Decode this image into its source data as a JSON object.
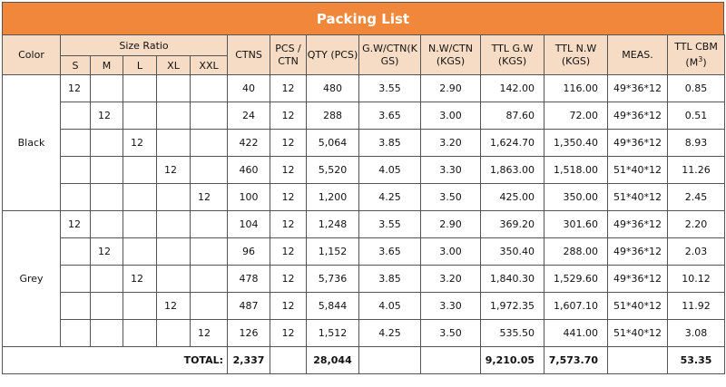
{
  "title": "Packing List",
  "headers": {
    "color": "Color",
    "size_ratio": "Size Ratio",
    "sizes": [
      "S",
      "M",
      "L",
      "XL",
      "XXL"
    ],
    "ctns": "CTNS",
    "pcs_ctn": "PCS / CTN",
    "qty": "QTY (PCS)",
    "gw_ctn": "G.W/CTN(KGS)",
    "nw_ctn": "N.W/CTN (KGS)",
    "ttl_gw": "TTL G.W (KGS)",
    "ttl_nw": "TTL N.W (KGS)",
    "meas": "MEAS.",
    "ttl_cbm": "TTL CBM",
    "ttl_cbm_unit": "(M",
    "ttl_cbm_sup": "3",
    "ttl_cbm_close": ")"
  },
  "groups": [
    {
      "color": "Black",
      "rows": [
        {
          "s": "12",
          "m": "",
          "l": "",
          "xl": "",
          "xxl": "",
          "ctns": "40",
          "pcs": "12",
          "qty": "480",
          "gw": "3.55",
          "nw": "2.90",
          "ttl_gw": "142.00",
          "ttl_nw": "116.00",
          "meas": "49*36*12",
          "cbm": "0.85"
        },
        {
          "s": "",
          "m": "12",
          "l": "",
          "xl": "",
          "xxl": "",
          "ctns": "24",
          "pcs": "12",
          "qty": "288",
          "gw": "3.65",
          "nw": "3.00",
          "ttl_gw": "87.60",
          "ttl_nw": "72.00",
          "meas": "49*36*12",
          "cbm": "0.51"
        },
        {
          "s": "",
          "m": "",
          "l": "12",
          "xl": "",
          "xxl": "",
          "ctns": "422",
          "pcs": "12",
          "qty": "5,064",
          "gw": "3.85",
          "nw": "3.20",
          "ttl_gw": "1,624.70",
          "ttl_nw": "1,350.40",
          "meas": "49*36*12",
          "cbm": "8.93"
        },
        {
          "s": "",
          "m": "",
          "l": "",
          "xl": "12",
          "xxl": "",
          "ctns": "460",
          "pcs": "12",
          "qty": "5,520",
          "gw": "4.05",
          "nw": "3.30",
          "ttl_gw": "1,863.00",
          "ttl_nw": "1,518.00",
          "meas": "51*40*12",
          "cbm": "11.26"
        },
        {
          "s": "",
          "m": "",
          "l": "",
          "xl": "",
          "xxl": "12",
          "ctns": "100",
          "pcs": "12",
          "qty": "1,200",
          "gw": "4.25",
          "nw": "3.50",
          "ttl_gw": "425.00",
          "ttl_nw": "350.00",
          "meas": "51*40*12",
          "cbm": "2.45"
        }
      ]
    },
    {
      "color": "Grey",
      "rows": [
        {
          "s": "12",
          "m": "",
          "l": "",
          "xl": "",
          "xxl": "",
          "ctns": "104",
          "pcs": "12",
          "qty": "1,248",
          "gw": "3.55",
          "nw": "2.90",
          "ttl_gw": "369.20",
          "ttl_nw": "301.60",
          "meas": "49*36*12",
          "cbm": "2.20"
        },
        {
          "s": "",
          "m": "12",
          "l": "",
          "xl": "",
          "xxl": "",
          "ctns": "96",
          "pcs": "12",
          "qty": "1,152",
          "gw": "3.65",
          "nw": "3.00",
          "ttl_gw": "350.40",
          "ttl_nw": "288.00",
          "meas": "49*36*12",
          "cbm": "2.03"
        },
        {
          "s": "",
          "m": "",
          "l": "12",
          "xl": "",
          "xxl": "",
          "ctns": "478",
          "pcs": "12",
          "qty": "5,736",
          "gw": "3.85",
          "nw": "3.20",
          "ttl_gw": "1,840.30",
          "ttl_nw": "1,529.60",
          "meas": "49*36*12",
          "cbm": "10.12"
        },
        {
          "s": "",
          "m": "",
          "l": "",
          "xl": "12",
          "xxl": "",
          "ctns": "487",
          "pcs": "12",
          "qty": "5,844",
          "gw": "4.05",
          "nw": "3.30",
          "ttl_gw": "1,972.35",
          "ttl_nw": "1,607.10",
          "meas": "51*40*12",
          "cbm": "11.92"
        },
        {
          "s": "",
          "m": "",
          "l": "",
          "xl": "",
          "xxl": "12",
          "ctns": "126",
          "pcs": "12",
          "qty": "1,512",
          "gw": "4.25",
          "nw": "3.50",
          "ttl_gw": "535.50",
          "ttl_nw": "441.00",
          "meas": "51*40*12",
          "cbm": "3.08"
        }
      ]
    }
  ],
  "total": {
    "label": "TOTAL:",
    "ctns": "2,337",
    "qty": "28,044",
    "ttl_gw": "9,210.05",
    "ttl_nw": "7,573.70",
    "cbm": "53.35"
  },
  "colors": {
    "title_bg": "#f0873a",
    "header_bg": "#f6dcc5",
    "border": "#555555"
  }
}
